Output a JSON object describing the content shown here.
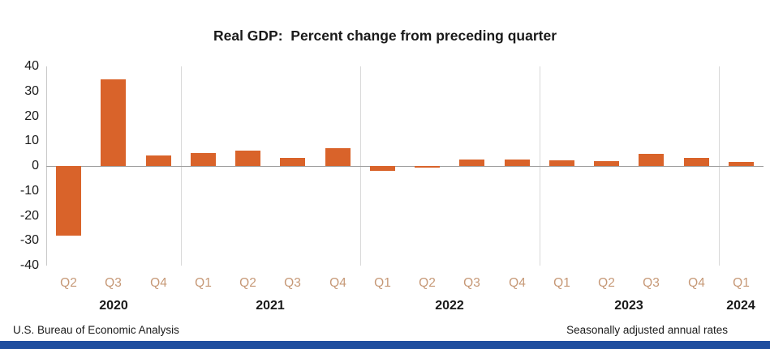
{
  "title": "Real GDP:  Percent change from preceding quarter",
  "footer": {
    "left": "U.S. Bureau of Economic Analysis",
    "right": "Seasonally adjusted annual rates"
  },
  "colors": {
    "bar": "#d9632a",
    "quarter_label": "#c69876",
    "year_label": "#1a1a1a",
    "separator_line": "#d9d9d9",
    "axis_line": "#c9c9c9",
    "zero_line": "#9e9e9e",
    "bottom_strip": "#1f4e9f"
  },
  "chart_data": {
    "type": "bar",
    "title": "Real GDP:  Percent change from preceding quarter",
    "ylabel": "",
    "xlabel": "",
    "ylim": [
      -40,
      40
    ],
    "yticks": [
      40,
      30,
      20,
      10,
      0,
      -10,
      -20,
      -30,
      -40
    ],
    "grid": "vertical year separators only",
    "legend": "none",
    "quarters": [
      "Q2",
      "Q3",
      "Q4",
      "Q1",
      "Q2",
      "Q3",
      "Q4",
      "Q1",
      "Q2",
      "Q3",
      "Q4",
      "Q1",
      "Q2",
      "Q3",
      "Q4",
      "Q1"
    ],
    "values": [
      -28.0,
      34.8,
      4.2,
      5.2,
      6.2,
      3.3,
      7.0,
      -2.0,
      -0.6,
      2.7,
      2.6,
      2.2,
      2.1,
      4.9,
      3.4,
      1.6
    ],
    "x": [
      "2020 Q2",
      "2020 Q3",
      "2020 Q4",
      "2021 Q1",
      "2021 Q2",
      "2021 Q3",
      "2021 Q4",
      "2022 Q1",
      "2022 Q2",
      "2022 Q3",
      "2022 Q4",
      "2023 Q1",
      "2023 Q2",
      "2023 Q3",
      "2023 Q4",
      "2024 Q1"
    ],
    "years": [
      {
        "label": "2020",
        "start": 0,
        "count": 3
      },
      {
        "label": "2021",
        "start": 3,
        "count": 4
      },
      {
        "label": "2022",
        "start": 7,
        "count": 4
      },
      {
        "label": "2023",
        "start": 11,
        "count": 4
      },
      {
        "label": "2024",
        "start": 15,
        "count": 1
      }
    ]
  }
}
